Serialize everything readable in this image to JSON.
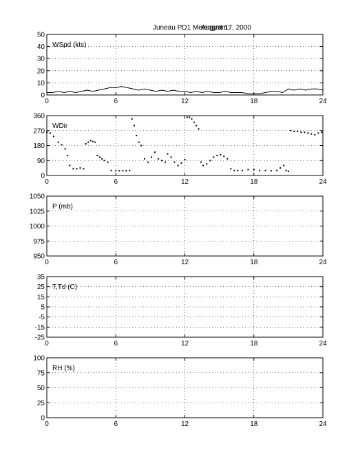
{
  "title_left": "Juneau PD1 Meteogram:",
  "title_right": "August 17, 2000",
  "chart_data": [
    {
      "type": "line",
      "label": "WSpd (kts)",
      "xlim": [
        0,
        24
      ],
      "ylim": [
        0,
        50
      ],
      "xticks": [
        0,
        6,
        12,
        18,
        24
      ],
      "yticks": [
        0,
        10,
        20,
        30,
        40,
        50
      ],
      "grid": true,
      "series": [
        {
          "x": [
            0,
            0.5,
            1,
            1.5,
            2,
            2.5,
            3,
            3.5,
            4,
            4.5,
            5,
            5.5,
            6,
            6.5,
            7,
            7.5,
            8,
            8.5,
            9,
            9.5,
            10,
            10.5,
            11,
            11.5,
            12,
            12.5,
            13,
            13.5,
            14,
            14.5,
            15,
            15.5,
            16,
            16.5,
            17,
            17.5,
            18,
            18.5,
            19,
            19.5,
            20,
            20.5,
            21,
            21.5,
            22,
            22.5,
            23,
            23.5,
            24
          ],
          "values": [
            2,
            2,
            3,
            2,
            3,
            2,
            3,
            4,
            3,
            4,
            5,
            6,
            6,
            7,
            6,
            5,
            4,
            5,
            4,
            3,
            4,
            3,
            4,
            3,
            3,
            2,
            3,
            2,
            3,
            2,
            2,
            3,
            2,
            2,
            2,
            1,
            1,
            1,
            2,
            3,
            3,
            2,
            5,
            4,
            5,
            4,
            5,
            5,
            4
          ]
        }
      ]
    },
    {
      "type": "scatter",
      "label": "WDir",
      "xlim": [
        0,
        24
      ],
      "ylim": [
        0,
        360
      ],
      "xticks": [
        0,
        6,
        12,
        18,
        24
      ],
      "yticks": [
        0,
        90,
        180,
        270,
        360
      ],
      "grid": true,
      "series": [
        {
          "x": [
            0,
            0.3,
            0.6,
            1.0,
            1.3,
            1.6,
            1.8,
            2.0,
            2.3,
            2.6,
            2.9,
            3.2,
            3.4,
            3.6,
            3.8,
            4.0,
            4.2,
            4.4,
            4.6,
            4.8,
            5.0,
            5.3,
            5.6,
            6.0,
            6.3,
            6.6,
            6.9,
            7.2,
            7.4,
            7.6,
            7.8,
            8.0,
            8.2,
            8.5,
            8.8,
            9.1,
            9.4,
            9.7,
            10.0,
            10.3,
            10.5,
            10.8,
            11.1,
            11.4,
            11.7,
            12.0,
            12.2,
            12.4,
            12.6,
            12.8,
            13.0,
            13.2,
            13.4,
            13.6,
            13.9,
            14.2,
            14.5,
            14.8,
            15.1,
            15.4,
            15.7,
            16.0,
            16.3,
            16.6,
            17.0,
            17.5,
            18.0,
            18.5,
            19.0,
            19.5,
            20.0,
            20.3,
            20.6,
            20.8,
            21.0,
            21.2,
            21.5,
            21.8,
            22.1,
            22.4,
            22.7,
            23.0,
            23.3,
            23.6,
            23.9
          ],
          "values": [
            260,
            255,
            235,
            200,
            185,
            160,
            120,
            60,
            40,
            40,
            45,
            40,
            190,
            200,
            210,
            205,
            200,
            120,
            110,
            100,
            90,
            80,
            30,
            28,
            28,
            28,
            28,
            30,
            340,
            300,
            240,
            200,
            180,
            100,
            80,
            110,
            140,
            100,
            90,
            80,
            130,
            110,
            80,
            60,
            75,
            95,
            350,
            350,
            340,
            320,
            300,
            280,
            80,
            60,
            70,
            90,
            110,
            120,
            125,
            115,
            100,
            40,
            30,
            30,
            30,
            35,
            35,
            30,
            30,
            28,
            30,
            45,
            60,
            30,
            25,
            270,
            265,
            265,
            260,
            260,
            255,
            250,
            245,
            255,
            260
          ]
        }
      ]
    },
    {
      "type": "line",
      "label": "P (mb)",
      "xlim": [
        0,
        24
      ],
      "ylim": [
        950,
        1050
      ],
      "xticks": [
        0,
        6,
        12,
        18,
        24
      ],
      "yticks": [
        950,
        975,
        1000,
        1025,
        1050
      ],
      "grid": true,
      "series": []
    },
    {
      "type": "line",
      "label": "T,Td (C)",
      "xlim": [
        0,
        24
      ],
      "ylim": [
        -25,
        35
      ],
      "xticks": [
        0,
        6,
        12,
        18,
        24
      ],
      "yticks": [
        -25,
        -15,
        -5,
        5,
        15,
        25,
        35
      ],
      "grid": true,
      "series": []
    },
    {
      "type": "line",
      "label": "RH (%)",
      "xlim": [
        0,
        24
      ],
      "ylim": [
        0,
        100
      ],
      "xticks": [
        0,
        6,
        12,
        18,
        24
      ],
      "yticks": [
        0,
        25,
        50,
        75,
        100
      ],
      "grid": true,
      "series": []
    }
  ]
}
